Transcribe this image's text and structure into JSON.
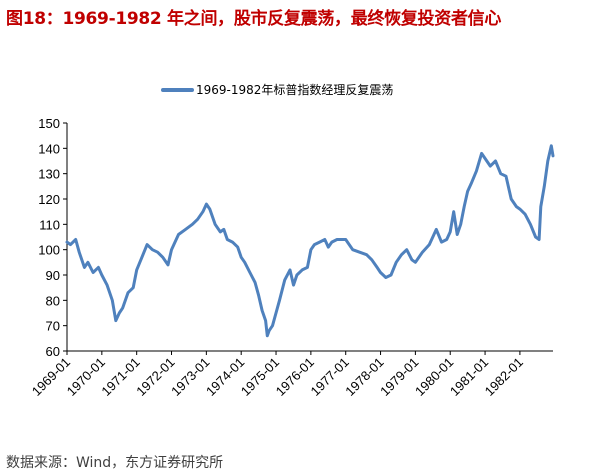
{
  "figure_title": "图18：1969-1982 年之间，股市反复震荡，最终恢复投资者信心",
  "source": "数据来源：Wind，东方证券研究所",
  "chart_data": {
    "type": "line",
    "legend_entry": "1969-1982年标普指数经理反复震荡",
    "line_color": "#4f81bd",
    "y_ticks": [
      "60",
      "70",
      "80",
      "90",
      "100",
      "110",
      "120",
      "130",
      "140",
      "150"
    ],
    "x_ticks": [
      "1969-01",
      "1970-01",
      "1971-01",
      "1972-01",
      "1973-01",
      "1974-01",
      "1975-01",
      "1976-01",
      "1977-01",
      "1978-01",
      "1979-01",
      "1980-01",
      "1981-01",
      "1982-01"
    ],
    "ylim": [
      60,
      150
    ],
    "xlim": [
      1969.0,
      1982.95
    ],
    "legend_position": "top",
    "grid": false,
    "series": [
      {
        "name": "1969-1982年标普指数经理反复震荡",
        "x": [
          1969.0,
          1969.1,
          1969.25,
          1969.35,
          1969.5,
          1969.6,
          1969.75,
          1969.9,
          1970.0,
          1970.15,
          1970.3,
          1970.4,
          1970.5,
          1970.6,
          1970.75,
          1970.9,
          1971.0,
          1971.15,
          1971.3,
          1971.45,
          1971.6,
          1971.75,
          1971.9,
          1972.0,
          1972.2,
          1972.4,
          1972.6,
          1972.75,
          1972.9,
          1973.0,
          1973.1,
          1973.25,
          1973.4,
          1973.5,
          1973.6,
          1973.75,
          1973.9,
          1974.0,
          1974.1,
          1974.25,
          1974.4,
          1974.5,
          1974.6,
          1974.7,
          1974.75,
          1974.8,
          1974.9,
          1975.0,
          1975.1,
          1975.25,
          1975.4,
          1975.5,
          1975.6,
          1975.75,
          1975.9,
          1976.0,
          1976.1,
          1976.25,
          1976.4,
          1976.5,
          1976.6,
          1976.75,
          1976.9,
          1977.0,
          1977.2,
          1977.4,
          1977.6,
          1977.75,
          1977.9,
          1978.0,
          1978.15,
          1978.3,
          1978.45,
          1978.6,
          1978.75,
          1978.9,
          1979.0,
          1979.2,
          1979.4,
          1979.6,
          1979.75,
          1979.9,
          1980.0,
          1980.1,
          1980.2,
          1980.3,
          1980.4,
          1980.5,
          1980.6,
          1980.75,
          1980.9,
          1981.0,
          1981.15,
          1981.3,
          1981.45,
          1981.6,
          1981.75,
          1981.9,
          1982.0,
          1982.15,
          1982.3,
          1982.45,
          1982.55,
          1982.6,
          1982.7,
          1982.8,
          1982.9,
          1982.95
        ],
        "values": [
          103,
          102,
          104,
          99,
          93,
          95,
          91,
          93,
          90,
          86,
          80,
          72,
          75,
          77,
          83,
          85,
          92,
          97,
          102,
          100,
          99,
          97,
          94,
          100,
          106,
          108,
          110,
          112,
          115,
          118,
          116,
          110,
          107,
          108,
          104,
          103,
          101,
          97,
          95,
          91,
          87,
          82,
          76,
          72,
          66,
          68,
          70,
          75,
          80,
          88,
          92,
          86,
          90,
          92,
          93,
          100,
          102,
          103,
          104,
          101,
          103,
          104,
          104,
          104,
          100,
          99,
          98,
          96,
          93,
          91,
          89,
          90,
          95,
          98,
          100,
          96,
          95,
          99,
          102,
          108,
          103,
          104,
          107,
          115,
          106,
          110,
          117,
          123,
          126,
          131,
          138,
          136,
          133,
          135,
          130,
          129,
          120,
          117,
          116,
          114,
          110,
          105,
          104,
          117,
          125,
          135,
          141,
          137
        ]
      }
    ]
  }
}
